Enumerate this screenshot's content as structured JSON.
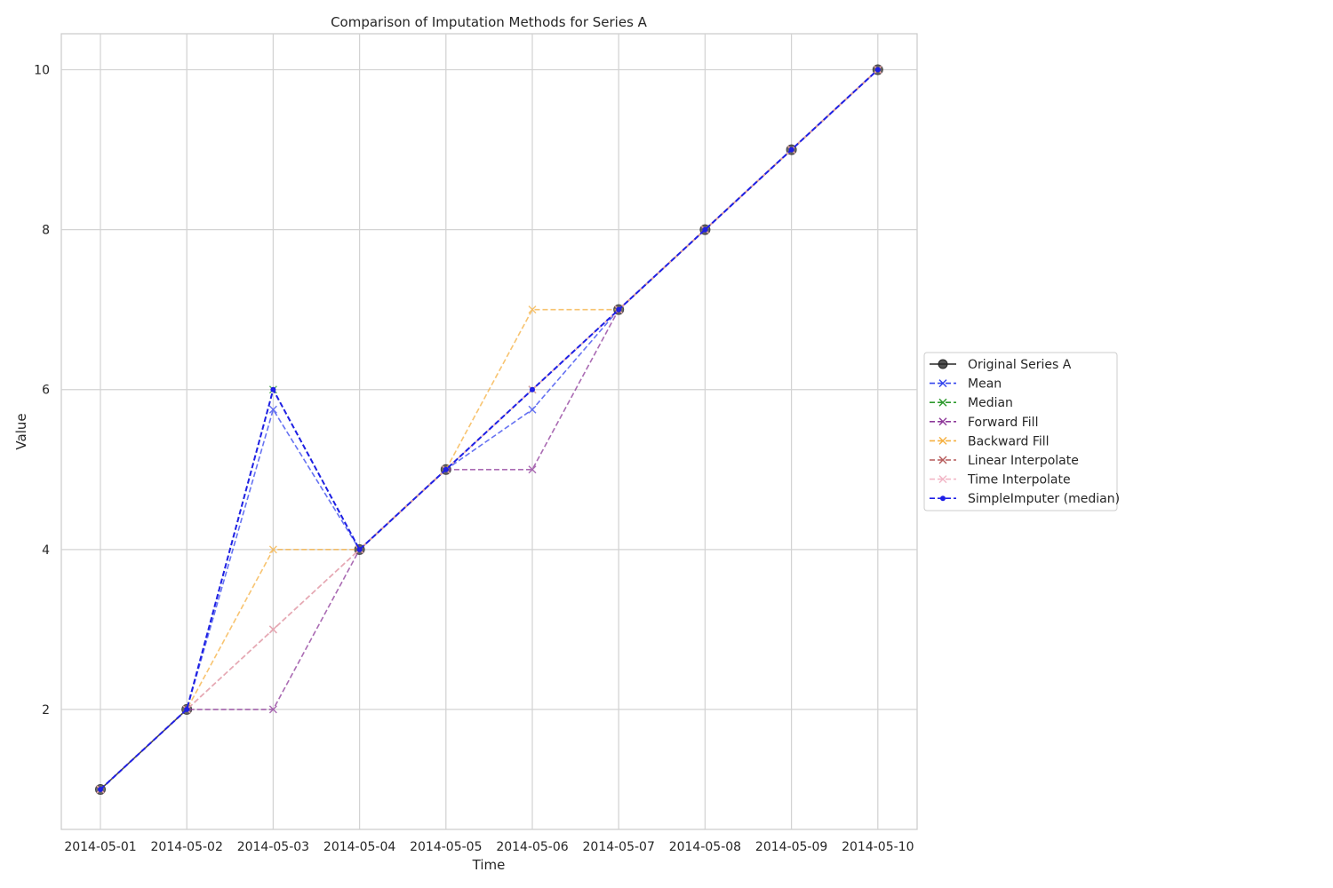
{
  "chart_data": {
    "type": "line",
    "title": "Comparison of Imputation Methods for Series A",
    "xlabel": "Time",
    "ylabel": "Value",
    "x": [
      "2014-05-01",
      "2014-05-02",
      "2014-05-03",
      "2014-05-04",
      "2014-05-05",
      "2014-05-06",
      "2014-05-07",
      "2014-05-08",
      "2014-05-09",
      "2014-05-10"
    ],
    "ylim": [
      0.5,
      10.45
    ],
    "yticks": [
      2,
      4,
      6,
      8,
      10
    ],
    "grid": true,
    "legend_position": "center-right outside plot",
    "series": [
      {
        "name": "Original Series A",
        "color": "#262626",
        "style": "solid",
        "marker": "circle",
        "values": [
          1,
          2,
          null,
          4,
          5,
          null,
          7,
          8,
          9,
          10
        ]
      },
      {
        "name": "Mean",
        "color": "#3344ee",
        "style": "dashed",
        "marker": "x",
        "values": [
          1,
          2,
          5.75,
          4,
          5,
          5.75,
          7,
          8,
          9,
          10
        ]
      },
      {
        "name": "Median",
        "color": "#2e9a2e",
        "style": "dashed",
        "marker": "x",
        "values": [
          1,
          2,
          6,
          4,
          5,
          6,
          7,
          8,
          9,
          10
        ]
      },
      {
        "name": "Forward Fill",
        "color": "#8e3a9a",
        "style": "dashed",
        "marker": "x",
        "values": [
          1,
          2,
          2,
          4,
          5,
          5,
          7,
          8,
          9,
          10
        ]
      },
      {
        "name": "Backward Fill",
        "color": "#f5b041",
        "style": "dashed",
        "marker": "x",
        "values": [
          1,
          2,
          4,
          4,
          5,
          7,
          7,
          8,
          9,
          10
        ]
      },
      {
        "name": "Linear Interpolate",
        "color": "#b65a5a",
        "style": "dashed",
        "marker": "x",
        "values": [
          1,
          2,
          3,
          4,
          5,
          6,
          7,
          8,
          9,
          10
        ]
      },
      {
        "name": "Time Interpolate",
        "color": "#f2b6c6",
        "style": "dashed",
        "marker": "x",
        "values": [
          1,
          2,
          3,
          4,
          5,
          6,
          7,
          8,
          9,
          10
        ]
      },
      {
        "name": "SimpleImputer (median)",
        "color": "#1f1fe6",
        "style": "dashed",
        "marker": "dot",
        "values": [
          1,
          2,
          6,
          4,
          5,
          6,
          7,
          8,
          9,
          10
        ]
      }
    ]
  }
}
